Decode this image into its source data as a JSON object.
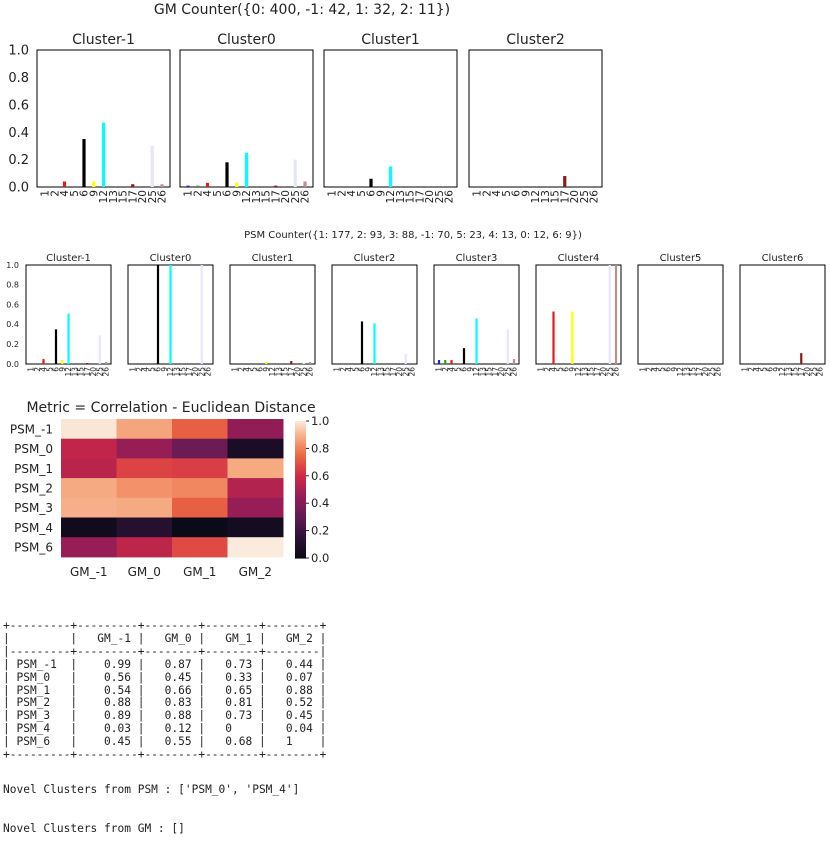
{
  "chart_data": [
    {
      "type": "bar",
      "title": "GM Counter({0: 400, -1: 42, 1: 32, 2: 11})",
      "categories": [
        "1",
        "2",
        "4",
        "5",
        "6",
        "9",
        "12",
        "13",
        "15",
        "17",
        "20",
        "25",
        "26"
      ],
      "ylim": [
        0,
        1.0
      ],
      "yticks": [
        "0.0",
        "0.2",
        "0.4",
        "0.6",
        "0.8",
        "1.0"
      ],
      "category_colors": [
        "#1f1fd8",
        "#2aa02a",
        "#e41a1c",
        "#ff9933",
        "#000000",
        "#ffff00",
        "#00ffff",
        "#00ffff",
        "#ff00ff",
        "#8b1a1a",
        "#e8a0a0",
        "#e6e6fa",
        "#bc8f8f"
      ],
      "panels": [
        {
          "title": "Cluster-1",
          "values": [
            0,
            0,
            0.04,
            0,
            0.35,
            0.04,
            0.47,
            0,
            0,
            0.02,
            0,
            0.3,
            0.02
          ]
        },
        {
          "title": "Cluster0",
          "values": [
            0.01,
            0.01,
            0.03,
            0,
            0.18,
            0.03,
            0.25,
            0,
            0,
            0.01,
            0,
            0.2,
            0.04
          ]
        },
        {
          "title": "Cluster1",
          "values": [
            0,
            0,
            0,
            0,
            0.06,
            0,
            0.15,
            0,
            0,
            0,
            0,
            0,
            0
          ]
        },
        {
          "title": "Cluster2",
          "values": [
            0,
            0,
            0,
            0,
            0,
            0,
            0,
            0,
            0,
            0.08,
            0,
            0,
            0
          ]
        }
      ]
    },
    {
      "type": "bar",
      "title": "PSM Counter({1: 177, 2: 93, 3: 88, -1: 70, 5: 23, 4: 13, 0: 12, 6: 9})",
      "categories": [
        "1",
        "2",
        "4",
        "5",
        "6",
        "9",
        "12",
        "13",
        "15",
        "17",
        "20",
        "25",
        "26"
      ],
      "ylim": [
        0,
        1.0
      ],
      "yticks": [
        "0.0",
        "0.2",
        "0.4",
        "0.6",
        "0.8",
        "1.0"
      ],
      "category_colors": [
        "#1f1fd8",
        "#2aa02a",
        "#e41a1c",
        "#ff9933",
        "#000000",
        "#ffff00",
        "#00ffff",
        "#00ffff",
        "#ff00ff",
        "#8b1a1a",
        "#e8a0a0",
        "#e6e6fa",
        "#bc8f8f"
      ],
      "panels": [
        {
          "title": "Cluster-1",
          "values": [
            0,
            0,
            0.05,
            0,
            0.35,
            0.04,
            0.51,
            0,
            0,
            0.01,
            0,
            0.29,
            0.02
          ]
        },
        {
          "title": "Cluster0",
          "values": [
            0,
            0,
            0,
            0,
            1.0,
            0,
            1.0,
            0,
            0,
            0,
            0,
            1.0,
            0
          ]
        },
        {
          "title": "Cluster1",
          "values": [
            0,
            0,
            0,
            0,
            0,
            0.02,
            0,
            0,
            0,
            0.03,
            0,
            0.01,
            0.02
          ]
        },
        {
          "title": "Cluster2",
          "values": [
            0,
            0,
            0,
            0,
            0.43,
            0,
            0.41,
            0,
            0,
            0,
            0,
            0.1,
            0
          ]
        },
        {
          "title": "Cluster3",
          "values": [
            0.04,
            0.04,
            0.04,
            0,
            0.16,
            0,
            0.46,
            0,
            0,
            0,
            0,
            0.35,
            0.05
          ]
        },
        {
          "title": "Cluster4",
          "values": [
            0,
            0,
            0.53,
            0,
            0,
            0.53,
            0,
            0,
            0,
            0,
            0,
            1.0,
            1.0
          ]
        },
        {
          "title": "Cluster5",
          "values": [
            0,
            0,
            0,
            0,
            0,
            0,
            0,
            0,
            0,
            0,
            0,
            0,
            0
          ]
        },
        {
          "title": "Cluster6",
          "values": [
            0,
            0,
            0,
            0,
            0,
            0,
            0,
            0,
            0,
            0.11,
            0,
            0,
            0
          ]
        }
      ]
    },
    {
      "type": "heatmap",
      "title": "Metric = Correlation - Euclidean Distance",
      "rows": [
        "PSM_-1",
        "PSM_0",
        "PSM_1",
        "PSM_2",
        "PSM_3",
        "PSM_4",
        "PSM_6"
      ],
      "cols": [
        "GM_-1",
        "GM_0",
        "GM_1",
        "GM_2"
      ],
      "values": [
        [
          0.99,
          0.87,
          0.73,
          0.44
        ],
        [
          0.56,
          0.45,
          0.33,
          0.07
        ],
        [
          0.54,
          0.66,
          0.65,
          0.88
        ],
        [
          0.88,
          0.83,
          0.81,
          0.52
        ],
        [
          0.89,
          0.88,
          0.73,
          0.45
        ],
        [
          0.03,
          0.12,
          0,
          0.04
        ],
        [
          0.45,
          0.55,
          0.68,
          1
        ]
      ],
      "vmin": 0,
      "vmax": 1,
      "colorbar_ticks": [
        "0.0",
        "0.2",
        "0.4",
        "0.6",
        "0.8",
        "1.0"
      ]
    }
  ],
  "table_text": "+---------+---------+--------+--------+--------+\n|         |   GM_-1 |   GM_0 |   GM_1 |   GM_2 |\n|---------+---------+--------+--------+--------|\n| PSM_-1  |    0.99 |   0.87 |   0.73 |   0.44 |\n| PSM_0   |    0.56 |   0.45 |   0.33 |   0.07 |\n| PSM_1   |    0.54 |   0.66 |   0.65 |   0.88 |\n| PSM_2   |    0.88 |   0.83 |   0.81 |   0.52 |\n| PSM_3   |    0.89 |   0.88 |   0.73 |   0.45 |\n| PSM_4   |    0.03 |   0.12 |   0    |   0.04 |\n| PSM_6   |    0.45 |   0.55 |   0.68 |   1    |\n+---------+---------+--------+--------+--------+",
  "novel": {
    "psm": "Novel Clusters from PSM : ['PSM_0', 'PSM_4']",
    "gm": "Novel Clusters from GM : []"
  }
}
